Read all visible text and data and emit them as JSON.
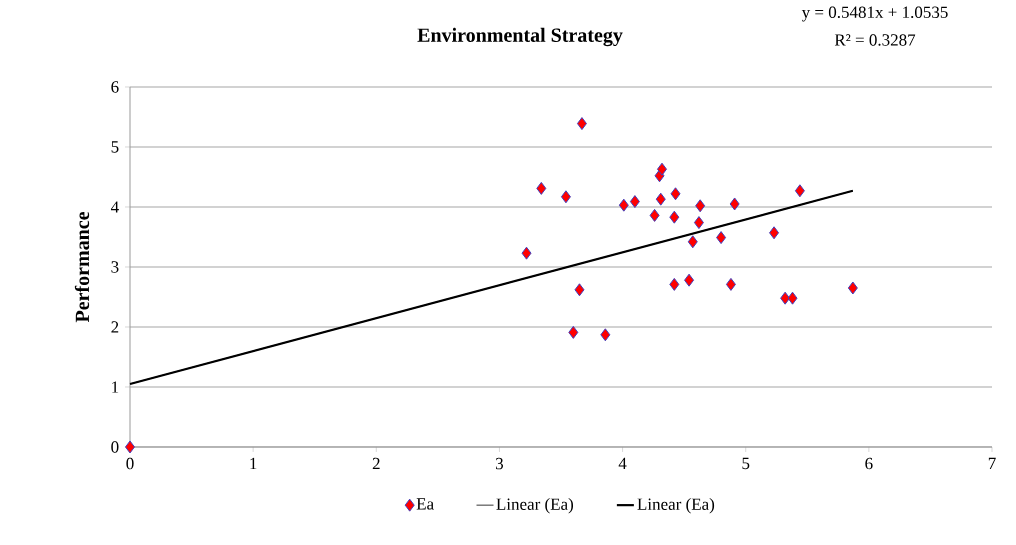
{
  "chart_data": {
    "type": "scatter",
    "title": "Environmental Strategy",
    "ylabel": "Performance",
    "annotations": [
      "y = 0.5481x + 1.0535",
      "R² = 0.3287"
    ],
    "xlim": [
      0,
      7
    ],
    "xticks": [
      0,
      1,
      2,
      3,
      4,
      5,
      6,
      7
    ],
    "ylim": [
      0,
      6
    ],
    "yticks": [
      0,
      1,
      2,
      3,
      4,
      5,
      6
    ],
    "grid": "y",
    "legend": "bottom",
    "marker": "diamond",
    "series": [
      {
        "name": "Ea",
        "color": "#ff0000",
        "x": [
          0,
          3.22,
          3.34,
          3.54,
          3.67,
          3.65,
          3.6,
          3.86,
          4.01,
          4.1,
          4.26,
          4.3,
          4.32,
          4.31,
          4.43,
          4.42,
          4.42,
          4.54,
          4.57,
          4.62,
          4.63,
          4.8,
          4.88,
          4.91,
          5.23,
          5.32,
          5.38,
          5.87,
          5.44
        ],
        "values": [
          0,
          3.23,
          4.31,
          4.17,
          5.39,
          2.62,
          1.91,
          1.87,
          4.03,
          4.09,
          3.86,
          4.52,
          4.63,
          4.13,
          4.22,
          3.83,
          2.71,
          2.78,
          3.42,
          3.74,
          4.02,
          3.49,
          2.71,
          4.05,
          3.57,
          2.48,
          2.48,
          2.65,
          4.27
        ]
      },
      {
        "name": "Linear (Ea)",
        "type": "line",
        "color": "#000000",
        "marker": "none",
        "x": [
          0,
          5.87
        ],
        "values": [
          1.05,
          4.27
        ]
      },
      {
        "name": "Linear (Ea)",
        "type": "line",
        "color": "#000000",
        "marker": "none",
        "x": [
          0,
          5.87
        ],
        "values": [
          1.05,
          4.27
        ]
      }
    ]
  }
}
